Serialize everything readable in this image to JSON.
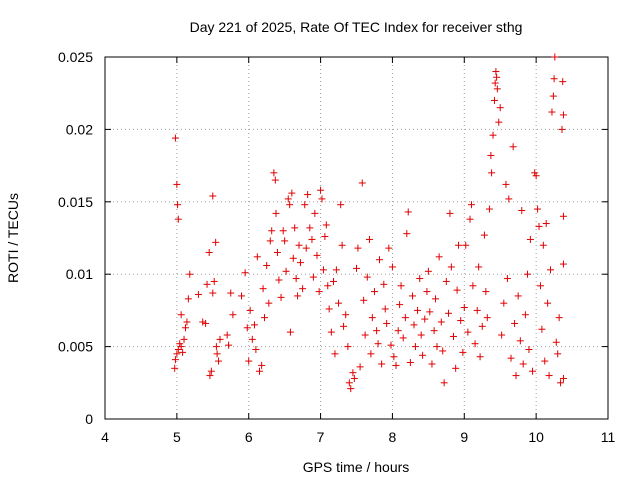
{
  "chart_data": {
    "type": "scatter",
    "title": "Day 221 of 2025, Rate Of TEC Index for receiver sthg",
    "xlabel": "GPS time / hours",
    "ylabel": "ROTI / TECUs",
    "xlim": [
      4,
      11
    ],
    "ylim": [
      0,
      0.025
    ],
    "grid": true,
    "x_ticks": [
      "4",
      "5",
      "6",
      "7",
      "8",
      "9",
      "10",
      "11"
    ],
    "y_ticks": [
      "0",
      "0.005",
      "0.01",
      "0.015",
      "0.02",
      "0.025"
    ],
    "marker": "plus",
    "color": "#e00000",
    "series": [
      {
        "name": "sthg",
        "points": [
          [
            4.98,
            0.0194
          ],
          [
            5.0,
            0.0162
          ],
          [
            5.01,
            0.0148
          ],
          [
            5.02,
            0.0138
          ],
          [
            4.97,
            0.0035
          ],
          [
            4.98,
            0.0041
          ],
          [
            5.0,
            0.0045
          ],
          [
            5.02,
            0.0048
          ],
          [
            5.04,
            0.0052
          ],
          [
            5.06,
            0.005
          ],
          [
            5.08,
            0.0046
          ],
          [
            5.1,
            0.0055
          ],
          [
            5.12,
            0.0063
          ],
          [
            5.14,
            0.0067
          ],
          [
            5.06,
            0.0072
          ],
          [
            5.16,
            0.0083
          ],
          [
            5.18,
            0.01
          ],
          [
            5.3,
            0.0086
          ],
          [
            5.36,
            0.0067
          ],
          [
            5.4,
            0.0066
          ],
          [
            5.42,
            0.0093
          ],
          [
            5.45,
            0.0115
          ],
          [
            5.46,
            0.003
          ],
          [
            5.48,
            0.0033
          ],
          [
            5.5,
            0.0154
          ],
          [
            5.5,
            0.0087
          ],
          [
            5.52,
            0.0095
          ],
          [
            5.54,
            0.0122
          ],
          [
            5.55,
            0.005
          ],
          [
            5.56,
            0.0045
          ],
          [
            5.58,
            0.004
          ],
          [
            5.6,
            0.0055
          ],
          [
            5.7,
            0.0058
          ],
          [
            5.72,
            0.0051
          ],
          [
            5.75,
            0.0087
          ],
          [
            5.78,
            0.0072
          ],
          [
            5.9,
            0.0085
          ],
          [
            5.95,
            0.0101
          ],
          [
            5.98,
            0.0063
          ],
          [
            6.0,
            0.004
          ],
          [
            6.02,
            0.0075
          ],
          [
            6.05,
            0.0055
          ],
          [
            6.08,
            0.0065
          ],
          [
            6.1,
            0.0048
          ],
          [
            6.12,
            0.0112
          ],
          [
            6.15,
            0.0033
          ],
          [
            6.18,
            0.0037
          ],
          [
            6.2,
            0.009
          ],
          [
            6.22,
            0.007
          ],
          [
            6.25,
            0.0106
          ],
          [
            6.28,
            0.008
          ],
          [
            6.3,
            0.0123
          ],
          [
            6.32,
            0.013
          ],
          [
            6.35,
            0.017
          ],
          [
            6.37,
            0.0165
          ],
          [
            6.38,
            0.0142
          ],
          [
            6.4,
            0.0115
          ],
          [
            6.42,
            0.0096
          ],
          [
            6.45,
            0.0084
          ],
          [
            6.48,
            0.013
          ],
          [
            6.5,
            0.0123
          ],
          [
            6.52,
            0.0102
          ],
          [
            6.55,
            0.0152
          ],
          [
            6.57,
            0.0148
          ],
          [
            6.58,
            0.006
          ],
          [
            6.6,
            0.0156
          ],
          [
            6.62,
            0.0111
          ],
          [
            6.64,
            0.0132
          ],
          [
            6.66,
            0.0097
          ],
          [
            6.68,
            0.0085
          ],
          [
            6.7,
            0.012
          ],
          [
            6.72,
            0.0108
          ],
          [
            6.75,
            0.009
          ],
          [
            6.78,
            0.0148
          ],
          [
            6.8,
            0.0118
          ],
          [
            6.82,
            0.0155
          ],
          [
            6.85,
            0.0132
          ],
          [
            6.88,
            0.0124
          ],
          [
            6.9,
            0.0098
          ],
          [
            6.92,
            0.0142
          ],
          [
            6.95,
            0.0113
          ],
          [
            6.98,
            0.0088
          ],
          [
            7.0,
            0.0158
          ],
          [
            7.02,
            0.0152
          ],
          [
            7.04,
            0.0103
          ],
          [
            7.06,
            0.0126
          ],
          [
            7.08,
            0.0134
          ],
          [
            7.1,
            0.0092
          ],
          [
            7.12,
            0.0076
          ],
          [
            7.15,
            0.006
          ],
          [
            7.18,
            0.0095
          ],
          [
            7.2,
            0.0045
          ],
          [
            7.22,
            0.0103
          ],
          [
            7.25,
            0.008
          ],
          [
            7.28,
            0.0148
          ],
          [
            7.3,
            0.012
          ],
          [
            7.32,
            0.0064
          ],
          [
            7.35,
            0.0072
          ],
          [
            7.38,
            0.005
          ],
          [
            7.4,
            0.0025
          ],
          [
            7.42,
            0.0021
          ],
          [
            7.45,
            0.0032
          ],
          [
            7.47,
            0.0028
          ],
          [
            7.5,
            0.0104
          ],
          [
            7.52,
            0.0118
          ],
          [
            7.55,
            0.0036
          ],
          [
            7.58,
            0.0163
          ],
          [
            7.6,
            0.0082
          ],
          [
            7.62,
            0.0058
          ],
          [
            7.65,
            0.0098
          ],
          [
            7.68,
            0.0124
          ],
          [
            7.7,
            0.0045
          ],
          [
            7.72,
            0.007
          ],
          [
            7.75,
            0.0088
          ],
          [
            7.78,
            0.0061
          ],
          [
            7.8,
            0.0052
          ],
          [
            7.82,
            0.011
          ],
          [
            7.85,
            0.0038
          ],
          [
            7.88,
            0.0093
          ],
          [
            7.9,
            0.0076
          ],
          [
            7.92,
            0.0066
          ],
          [
            7.95,
            0.0118
          ],
          [
            7.98,
            0.0051
          ],
          [
            8.0,
            0.0105
          ],
          [
            8.02,
            0.0043
          ],
          [
            8.05,
            0.0037
          ],
          [
            8.08,
            0.0061
          ],
          [
            8.1,
            0.0079
          ],
          [
            8.12,
            0.0092
          ],
          [
            8.15,
            0.0056
          ],
          [
            8.18,
            0.007
          ],
          [
            8.2,
            0.0128
          ],
          [
            8.22,
            0.0143
          ],
          [
            8.25,
            0.0039
          ],
          [
            8.28,
            0.0085
          ],
          [
            8.3,
            0.0065
          ],
          [
            8.32,
            0.005
          ],
          [
            8.35,
            0.0075
          ],
          [
            8.38,
            0.0097
          ],
          [
            8.4,
            0.0058
          ],
          [
            8.42,
            0.0044
          ],
          [
            8.45,
            0.0069
          ],
          [
            8.48,
            0.0088
          ],
          [
            8.5,
            0.0102
          ],
          [
            8.52,
            0.0074
          ],
          [
            8.55,
            0.0038
          ],
          [
            8.58,
            0.0061
          ],
          [
            8.6,
            0.0083
          ],
          [
            8.62,
            0.005
          ],
          [
            8.65,
            0.0112
          ],
          [
            8.68,
            0.0067
          ],
          [
            8.7,
            0.0047
          ],
          [
            8.72,
            0.0025
          ],
          [
            8.75,
            0.0095
          ],
          [
            8.78,
            0.0073
          ],
          [
            8.8,
            0.0142
          ],
          [
            8.82,
            0.0105
          ],
          [
            8.85,
            0.0057
          ],
          [
            8.88,
            0.0035
          ],
          [
            8.9,
            0.0089
          ],
          [
            8.92,
            0.012
          ],
          [
            8.95,
            0.0068
          ],
          [
            8.98,
            0.0046
          ],
          [
            9.0,
            0.0077
          ],
          [
            9.02,
            0.012
          ],
          [
            9.05,
            0.006
          ],
          [
            9.08,
            0.0138
          ],
          [
            9.1,
            0.0148
          ],
          [
            9.12,
            0.0092
          ],
          [
            9.15,
            0.0052
          ],
          [
            9.18,
            0.0075
          ],
          [
            9.2,
            0.0105
          ],
          [
            9.22,
            0.0043
          ],
          [
            9.25,
            0.0064
          ],
          [
            9.28,
            0.0127
          ],
          [
            9.3,
            0.0088
          ],
          [
            9.32,
            0.007
          ],
          [
            9.35,
            0.0145
          ],
          [
            9.37,
            0.0182
          ],
          [
            9.38,
            0.017
          ],
          [
            9.4,
            0.0196
          ],
          [
            9.42,
            0.022
          ],
          [
            9.43,
            0.0232
          ],
          [
            9.44,
            0.024
          ],
          [
            9.45,
            0.0236
          ],
          [
            9.46,
            0.0228
          ],
          [
            9.48,
            0.0205
          ],
          [
            9.5,
            0.0215
          ],
          [
            9.52,
            0.0058
          ],
          [
            9.55,
            0.008
          ],
          [
            9.58,
            0.0162
          ],
          [
            9.6,
            0.0097
          ],
          [
            9.62,
            0.0152
          ],
          [
            9.65,
            0.0042
          ],
          [
            9.68,
            0.0188
          ],
          [
            9.7,
            0.0066
          ],
          [
            9.72,
            0.003
          ],
          [
            9.75,
            0.0085
          ],
          [
            9.78,
            0.0054
          ],
          [
            9.8,
            0.0144
          ],
          [
            9.82,
            0.0038
          ],
          [
            9.85,
            0.0072
          ],
          [
            9.88,
            0.01
          ],
          [
            9.9,
            0.0048
          ],
          [
            9.92,
            0.0124
          ],
          [
            9.95,
            0.0033
          ],
          [
            9.98,
            0.017
          ],
          [
            10.0,
            0.0168
          ],
          [
            10.02,
            0.0145
          ],
          [
            10.04,
            0.0133
          ],
          [
            10.06,
            0.0092
          ],
          [
            10.08,
            0.0062
          ],
          [
            10.1,
            0.012
          ],
          [
            10.12,
            0.004
          ],
          [
            10.14,
            0.0135
          ],
          [
            10.16,
            0.008
          ],
          [
            10.18,
            0.003
          ],
          [
            10.2,
            0.0103
          ],
          [
            10.22,
            0.0212
          ],
          [
            10.24,
            0.0223
          ],
          [
            10.25,
            0.0235
          ],
          [
            10.26,
            0.025
          ],
          [
            10.28,
            0.0053
          ],
          [
            10.3,
            0.0045
          ],
          [
            10.32,
            0.007
          ],
          [
            10.34,
            0.0025
          ],
          [
            10.36,
            0.02
          ],
          [
            10.37,
            0.0233
          ],
          [
            10.38,
            0.021
          ],
          [
            10.38,
            0.014
          ],
          [
            10.38,
            0.0107
          ],
          [
            10.38,
            0.0028
          ]
        ]
      }
    ]
  }
}
